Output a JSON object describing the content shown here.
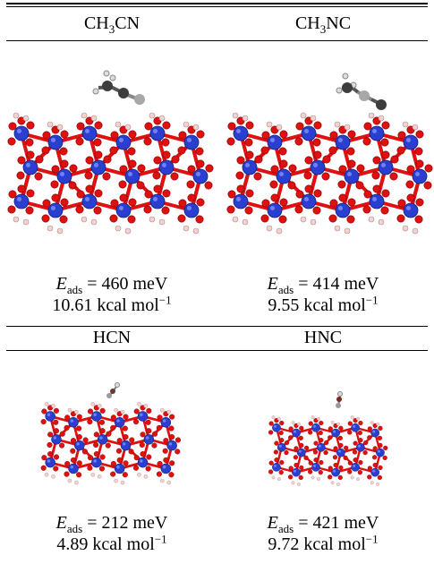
{
  "panels": [
    {
      "title_main": "CH",
      "title_sub": "3",
      "title_rest": "CN",
      "energy_symbol": "E",
      "energy_sub": "ads",
      "energy_value": " = 460 meV",
      "kcal_value": "10.61 kcal mol",
      "kcal_exp": "−1"
    },
    {
      "title_main": "CH",
      "title_sub": "3",
      "title_rest": "NC",
      "energy_symbol": "E",
      "energy_sub": "ads",
      "energy_value": " = 414 meV",
      "kcal_value": "9.55 kcal mol",
      "kcal_exp": "−1"
    },
    {
      "title_main": "HCN",
      "title_sub": "",
      "title_rest": "",
      "energy_symbol": "E",
      "energy_sub": "ads",
      "energy_value": " = 212 meV",
      "kcal_value": "4.89 kcal mol",
      "kcal_exp": "−1"
    },
    {
      "title_main": "HNC",
      "title_sub": "",
      "title_rest": "",
      "energy_symbol": "E",
      "energy_sub": "ads",
      "energy_value": " = 421 meV",
      "kcal_value": "9.72 kcal mol",
      "kcal_exp": "−1"
    }
  ],
  "colors": {
    "si": "#2a3fcf",
    "o": "#e01010",
    "h": "#f3d2d2",
    "c": "#4a4a4a",
    "n": "#9a9a9a"
  }
}
